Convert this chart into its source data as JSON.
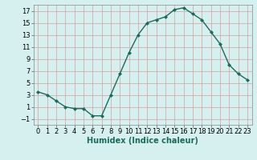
{
  "x": [
    0,
    1,
    2,
    3,
    4,
    5,
    6,
    7,
    8,
    9,
    10,
    11,
    12,
    13,
    14,
    15,
    16,
    17,
    18,
    19,
    20,
    21,
    22,
    23
  ],
  "y": [
    3.5,
    3.0,
    2.0,
    1.0,
    0.7,
    0.7,
    -0.5,
    -0.5,
    3.0,
    6.5,
    10.0,
    13.0,
    15.0,
    15.5,
    16.0,
    17.2,
    17.5,
    16.5,
    15.5,
    13.5,
    11.5,
    8.0,
    6.5,
    5.5
  ],
  "line_color": "#1a6b5a",
  "marker": "D",
  "marker_size": 2,
  "bg_color": "#d6f0f0",
  "grid_color": "#c0d8d8",
  "xlabel": "Humidex (Indice chaleur)",
  "xlim": [
    -0.5,
    23.5
  ],
  "ylim": [
    -2,
    18
  ],
  "yticks": [
    -1,
    1,
    3,
    5,
    7,
    9,
    11,
    13,
    15,
    17
  ],
  "xticks": [
    0,
    1,
    2,
    3,
    4,
    5,
    6,
    7,
    8,
    9,
    10,
    11,
    12,
    13,
    14,
    15,
    16,
    17,
    18,
    19,
    20,
    21,
    22,
    23
  ],
  "xlabel_fontsize": 7,
  "tick_fontsize": 6,
  "line_width": 1.0
}
